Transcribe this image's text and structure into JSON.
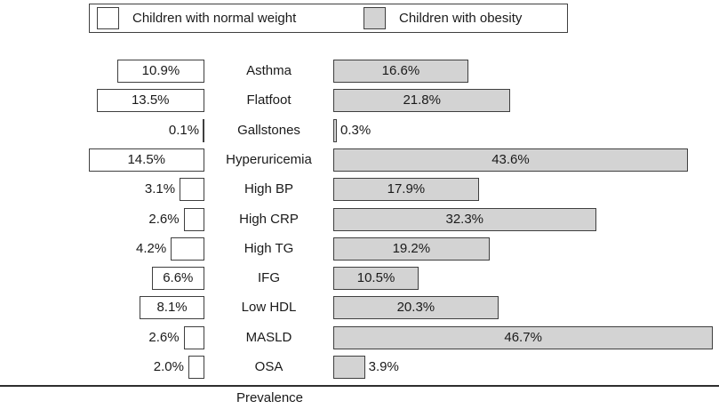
{
  "legend": {
    "normal_label": "Children with normal weight",
    "obesity_label": "Children with obesity"
  },
  "colors": {
    "normal_fill": "#ffffff",
    "obese_fill": "#d3d3d3",
    "bar_border": "#3f3f3f",
    "axis_line": "#2e2e2e",
    "text": "#1a1a1a"
  },
  "chart_data": {
    "type": "bar",
    "subtype": "butterfly",
    "orientation": "horizontal",
    "categories": [
      "Asthma",
      "Flatfoot",
      "Gallstones",
      "Hyperuricemia",
      "High BP",
      "High CRP",
      "High TG",
      "IFG",
      "Low HDL",
      "MASLD",
      "OSA"
    ],
    "series": [
      {
        "name": "Children with normal weight",
        "values": [
          10.9,
          13.5,
          0.1,
          14.5,
          3.1,
          2.6,
          4.2,
          6.6,
          8.1,
          2.6,
          2.0
        ]
      },
      {
        "name": "Children with obesity",
        "values": [
          16.6,
          21.8,
          0.3,
          43.6,
          17.9,
          32.3,
          19.2,
          10.5,
          20.3,
          46.7,
          3.9
        ]
      }
    ],
    "value_suffix": "%",
    "value_labels_on_bars": true,
    "title": "",
    "xlabel": "Prevalence",
    "ylabel": "",
    "legend_position": "top",
    "grid": false
  }
}
